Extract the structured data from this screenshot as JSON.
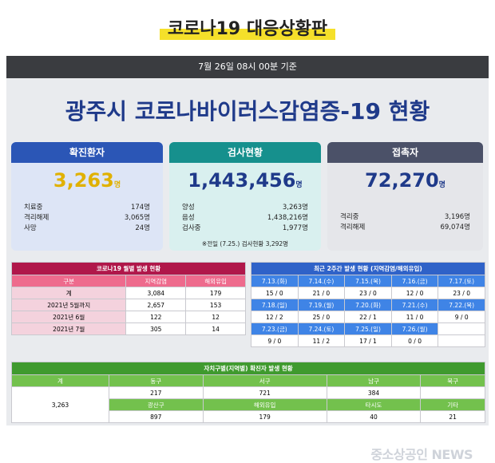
{
  "page_title": "코로나19 대응상황판",
  "dateline": "7월 26일 08시 00분 기준",
  "main_title": "광주시 코로나바이러스감염증-19 현황",
  "card_confirmed": {
    "header": "확진환자",
    "value": "3,263",
    "unit": "명",
    "rows": [
      {
        "label": "치료중",
        "value": "174명"
      },
      {
        "label": "격리해제",
        "value": "3,065명"
      },
      {
        "label": "사망",
        "value": "24명"
      }
    ]
  },
  "card_tests": {
    "header": "검사현황",
    "value": "1,443,456",
    "unit": "명",
    "rows": [
      {
        "label": "양성",
        "value": "3,263명"
      },
      {
        "label": "음성",
        "value": "1,438,216명"
      },
      {
        "label": "검사중",
        "value": "1,977명"
      }
    ],
    "note": "※전일 (7.25.) 검사현황 3,292명"
  },
  "card_contacts": {
    "header": "접촉자",
    "value": "72,270",
    "unit": "명",
    "rows": [
      {
        "label": "격리중",
        "value": "3,196명"
      },
      {
        "label": "격리해제",
        "value": "69,074명"
      }
    ]
  },
  "monthly": {
    "caption": "코로나19 월별 발생 현황",
    "headers": [
      "구분",
      "지역감염",
      "해외유입"
    ],
    "rows": [
      [
        "계",
        "3,084",
        "179"
      ],
      [
        "2021년 5월까지",
        "2,657",
        "153"
      ],
      [
        "2021년 6월",
        "122",
        "12"
      ],
      [
        "2021년 7월",
        "305",
        "14"
      ]
    ]
  },
  "recent": {
    "caption": "최근 2주간 발생 현황 (지역감염/해외유입)",
    "rows": [
      {
        "dates": [
          "7.13.(화)",
          "7.14.(수)",
          "7.15.(목)",
          "7.16.(금)",
          "7.17.(토)"
        ],
        "vals": [
          "15 / 0",
          "21 / 0",
          "23 / 0",
          "12 / 0",
          "23 / 0"
        ]
      },
      {
        "dates": [
          "7.18.(일)",
          "7.19.(월)",
          "7.20.(화)",
          "7.21.(수)",
          "7.22.(목)"
        ],
        "vals": [
          "12 / 2",
          "25 / 0",
          "22 / 1",
          "11 / 0",
          "9 / 0"
        ]
      },
      {
        "dates": [
          "7.23.(금)",
          "7.24.(토)",
          "7.25.(일)",
          "7.26.(월)",
          ""
        ],
        "vals": [
          "9 / 0",
          "11 / 2",
          "17 / 1",
          "0 / 0",
          ""
        ]
      }
    ]
  },
  "district": {
    "caption": "자치구별(지역별) 확진자 발생 현황",
    "headers1": [
      "계",
      "동구",
      "서구",
      "남구",
      "북구"
    ],
    "total": "3,263",
    "vals1": [
      "217",
      "721",
      "384",
      ""
    ],
    "headers2": [
      "광산구",
      "해외유입",
      "타시도",
      "기타"
    ],
    "vals2": [
      "897",
      "179",
      "40",
      "21"
    ]
  },
  "watermark": "중소상공인 NEWS"
}
